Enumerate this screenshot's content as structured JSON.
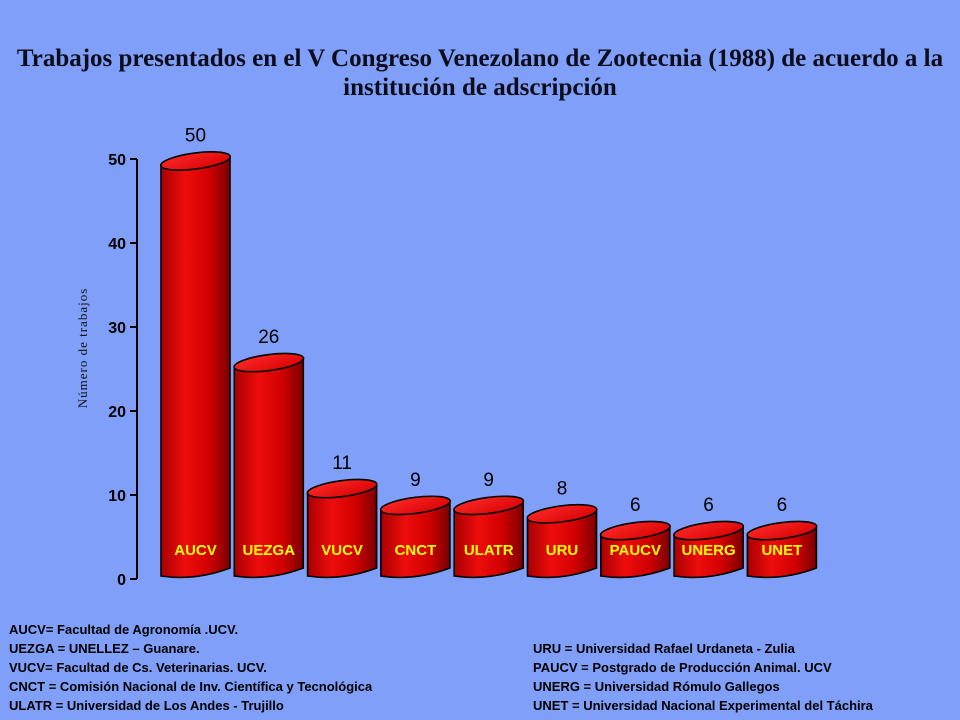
{
  "chart_data": {
    "type": "bar",
    "title": "Trabajos presentados en el V Congreso Venezolano de Zootecnia (1988) de acuerdo a la institución de adscripción",
    "xlabel": "",
    "ylabel": "Número de trabajos",
    "categories": [
      "AUCV",
      "UEZGA",
      "VUCV",
      "CNCT",
      "ULATR",
      "URU",
      "PAUCV",
      "UNERG",
      "UNET"
    ],
    "values": [
      50,
      26,
      11,
      9,
      9,
      8,
      6,
      6,
      6
    ],
    "ylim": [
      0,
      50
    ],
    "yticks": [
      0,
      10,
      20,
      30,
      40,
      50
    ],
    "grid": false,
    "colors": {
      "bar": "#e00000",
      "category_label": "#ffff00",
      "background": "#7f9ff9"
    }
  },
  "legend": {
    "left": [
      "AUCV= Facultad de Agronomía .UCV.",
      "UEZGA = UNELLEZ – Guanare.",
      "VUCV= Facultad de Cs. Veterinarias. UCV.",
      "CNCT = Comisión Nacional de Inv. Científica y Tecnológica",
      "ULATR = Universidad de Los Andes - Trujillo"
    ],
    "right": [
      "URU = Universidad Rafael Urdaneta - Zulia",
      "PAUCV = Postgrado de Producción  Animal. UCV",
      "UNERG = Universidad Rómulo Gallegos",
      "UNET = Universidad Nacional Experimental del Táchira"
    ]
  }
}
